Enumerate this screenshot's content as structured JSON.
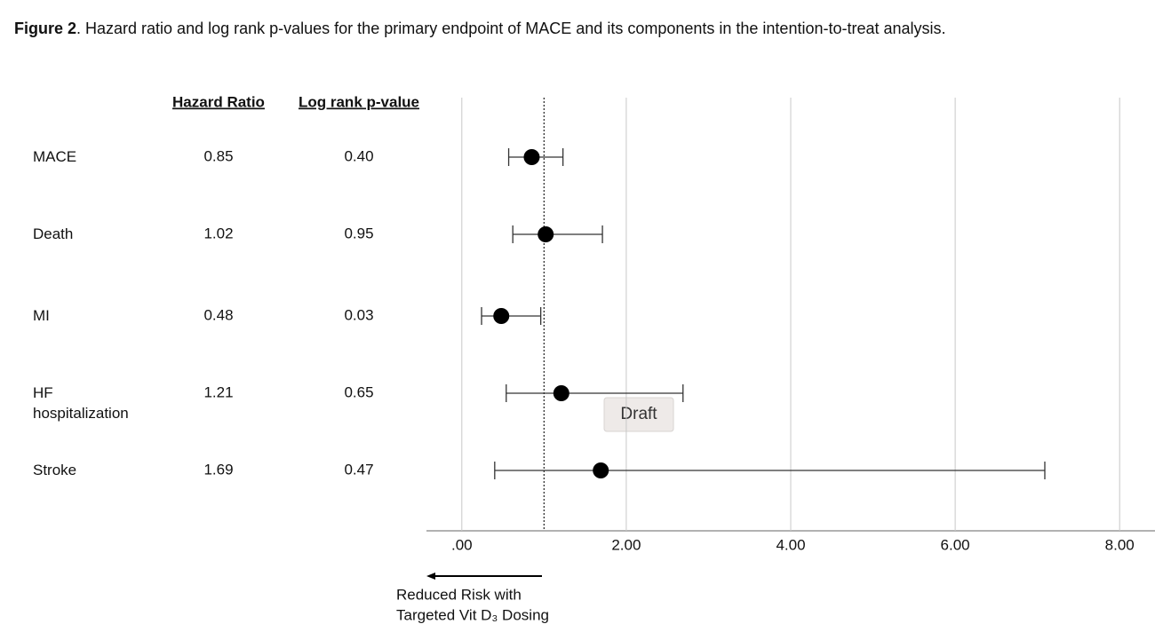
{
  "chart_data": {
    "type": "forest",
    "figure_label": "Figure 2",
    "title": ". Hazard ratio and log rank p-values for the primary endpoint of MACE and its components in the intention-to-treat analysis.",
    "column_headers": [
      "Hazard Ratio",
      "Log rank p-value"
    ],
    "categories": [
      "MACE",
      "Death",
      "MI",
      "HF hospitalization",
      "Stroke"
    ],
    "values": [
      0.85,
      1.02,
      0.48,
      1.21,
      1.69
    ],
    "ci_lower": [
      0.57,
      0.62,
      0.24,
      0.54,
      0.4
    ],
    "ci_upper": [
      1.23,
      1.71,
      0.96,
      2.69,
      7.09
    ],
    "p_values": [
      0.4,
      0.95,
      0.03,
      0.65,
      0.47
    ],
    "p_value_labels": [
      "0.40",
      "0.95",
      "0.03",
      "0.65",
      "0.47"
    ],
    "color": "#000000",
    "reference_line": 1,
    "xlim": [
      -0.43,
      8.43
    ],
    "xticks": [
      {
        "value": 0,
        "label": ".00"
      },
      {
        "value": 2,
        "label": "2.00"
      },
      {
        "value": 4,
        "label": "4.00"
      },
      {
        "value": 6,
        "label": "6.00"
      },
      {
        "value": 8,
        "label": "8.00"
      }
    ],
    "grid": true,
    "annotation": [
      "Reduced Risk with",
      "Targeted Vit D₃ Dosing"
    ],
    "watermark": "Draft"
  }
}
